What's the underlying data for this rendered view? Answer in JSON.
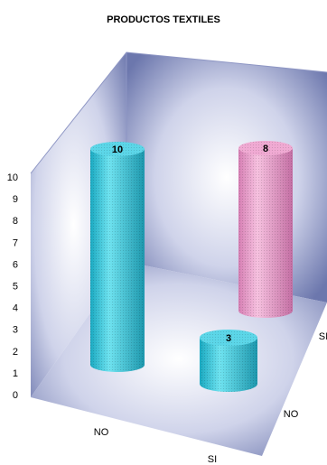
{
  "chart_data": {
    "type": "bar",
    "title": "PRODUCTOS TEXTILES",
    "x_categories": [
      "NO",
      "SI"
    ],
    "depth_categories": [
      "NO",
      "SI"
    ],
    "y_ticks": [
      "0",
      "1",
      "2",
      "3",
      "4",
      "5",
      "6",
      "7",
      "8",
      "9",
      "10"
    ],
    "ylim": [
      0,
      10
    ],
    "series": [
      {
        "x": "NO",
        "depth": "NO",
        "value": 10
      },
      {
        "x": "SI",
        "depth": "NO",
        "value": 3
      },
      {
        "x": "SI",
        "depth": "SI",
        "value": 8
      }
    ],
    "data_labels": [
      "10",
      "3",
      "8"
    ],
    "colors": {
      "cyan": "#3cc8dc",
      "pink": "#e99ac8",
      "wall": "#6f7bb2"
    }
  }
}
